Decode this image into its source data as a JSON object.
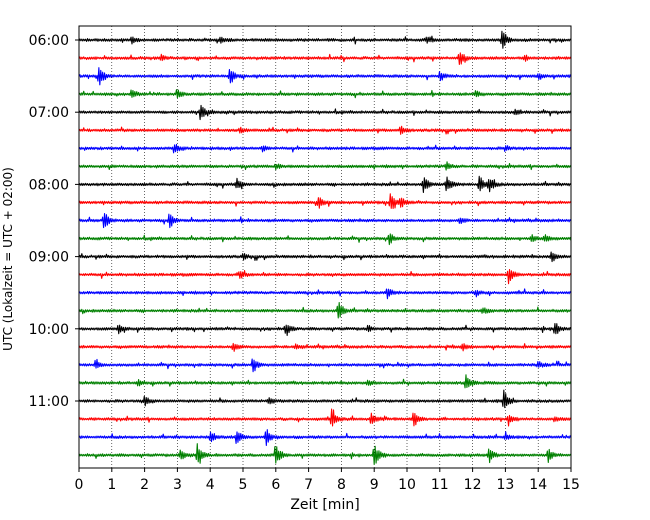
{
  "chart_data": {
    "type": "line",
    "subtype": "helicorder-seismogram",
    "title": "",
    "xlabel": "Zeit  [min]",
    "ylabel": "UTC (Lokalzeit = UTC + 02:00)",
    "xlim": [
      0,
      15
    ],
    "x_ticks": [
      "0",
      "1",
      "2",
      "3",
      "4",
      "5",
      "6",
      "7",
      "8",
      "9",
      "10",
      "11",
      "12",
      "13",
      "14",
      "15"
    ],
    "y_ticks": [
      "06:00",
      "07:00",
      "08:00",
      "09:00",
      "10:00",
      "11:00"
    ],
    "minutes_per_row": 15,
    "rows_per_tick_label": 4,
    "vertical_grid": true,
    "grid_style": "dotted",
    "color_cycle": [
      "#000000",
      "#ff0000",
      "#0000ff",
      "#008000"
    ],
    "rows": [
      {
        "start": "06:00",
        "color": "#000000",
        "events": [
          {
            "t": 12.9,
            "a": 1.0
          },
          {
            "t": 1.6,
            "a": 0.35
          },
          {
            "t": 4.3,
            "a": 0.35
          },
          {
            "t": 10.6,
            "a": 0.4
          }
        ]
      },
      {
        "start": "06:15",
        "color": "#ff0000",
        "events": [
          {
            "t": 11.6,
            "a": 0.85
          },
          {
            "t": 2.5,
            "a": 0.3
          },
          {
            "t": 13.6,
            "a": 0.3
          }
        ]
      },
      {
        "start": "06:30",
        "color": "#0000ff",
        "events": [
          {
            "t": 0.6,
            "a": 1.4
          },
          {
            "t": 4.6,
            "a": 1.0
          },
          {
            "t": 11.0,
            "a": 0.55
          },
          {
            "t": 14.0,
            "a": 0.4
          }
        ]
      },
      {
        "start": "06:45",
        "color": "#008000",
        "events": [
          {
            "t": 1.6,
            "a": 0.55
          },
          {
            "t": 3.0,
            "a": 0.4
          },
          {
            "t": 12.1,
            "a": 0.35
          }
        ]
      },
      {
        "start": "07:00",
        "color": "#000000",
        "events": [
          {
            "t": 3.7,
            "a": 0.9
          },
          {
            "t": 13.3,
            "a": 0.3
          }
        ]
      },
      {
        "start": "07:15",
        "color": "#ff0000",
        "events": [
          {
            "t": 9.8,
            "a": 0.5
          },
          {
            "t": 4.9,
            "a": 0.3
          }
        ]
      },
      {
        "start": "07:30",
        "color": "#0000ff",
        "events": [
          {
            "t": 2.9,
            "a": 0.55
          },
          {
            "t": 5.6,
            "a": 0.3
          },
          {
            "t": 13.0,
            "a": 0.3
          }
        ]
      },
      {
        "start": "07:45",
        "color": "#008000",
        "events": [
          {
            "t": 11.2,
            "a": 0.45
          },
          {
            "t": 6.0,
            "a": 0.3
          }
        ]
      },
      {
        "start": "08:00",
        "color": "#000000",
        "events": [
          {
            "t": 4.8,
            "a": 0.6
          },
          {
            "t": 10.5,
            "a": 1.1
          },
          {
            "t": 11.2,
            "a": 1.0
          },
          {
            "t": 12.2,
            "a": 1.1
          },
          {
            "t": 12.5,
            "a": 0.9
          }
        ]
      },
      {
        "start": "08:15",
        "color": "#ff0000",
        "events": [
          {
            "t": 7.3,
            "a": 0.7
          },
          {
            "t": 9.5,
            "a": 1.2
          },
          {
            "t": 9.8,
            "a": 0.6
          }
        ]
      },
      {
        "start": "08:30",
        "color": "#0000ff",
        "events": [
          {
            "t": 0.75,
            "a": 1.2
          },
          {
            "t": 2.75,
            "a": 1.0
          },
          {
            "t": 11.6,
            "a": 0.4
          }
        ]
      },
      {
        "start": "08:45",
        "color": "#008000",
        "events": [
          {
            "t": 9.45,
            "a": 0.7
          },
          {
            "t": 13.8,
            "a": 0.4
          },
          {
            "t": 14.2,
            "a": 0.4
          }
        ]
      },
      {
        "start": "09:00",
        "color": "#000000",
        "events": [
          {
            "t": 14.4,
            "a": 0.7
          },
          {
            "t": 5.0,
            "a": 0.3
          }
        ]
      },
      {
        "start": "09:15",
        "color": "#ff0000",
        "events": [
          {
            "t": 13.1,
            "a": 1.0
          },
          {
            "t": 4.9,
            "a": 0.45
          }
        ]
      },
      {
        "start": "09:30",
        "color": "#0000ff",
        "events": [
          {
            "t": 9.4,
            "a": 0.7
          },
          {
            "t": 12.1,
            "a": 0.35
          }
        ]
      },
      {
        "start": "09:45",
        "color": "#008000",
        "events": [
          {
            "t": 7.9,
            "a": 1.2
          },
          {
            "t": 12.3,
            "a": 0.35
          }
        ]
      },
      {
        "start": "10:00",
        "color": "#000000",
        "events": [
          {
            "t": 1.2,
            "a": 0.5
          },
          {
            "t": 6.3,
            "a": 0.7
          },
          {
            "t": 8.8,
            "a": 0.35
          },
          {
            "t": 14.5,
            "a": 0.9
          }
        ]
      },
      {
        "start": "10:15",
        "color": "#ff0000",
        "events": [
          {
            "t": 4.7,
            "a": 0.55
          },
          {
            "t": 6.6,
            "a": 0.35
          },
          {
            "t": 11.7,
            "a": 0.4
          }
        ]
      },
      {
        "start": "10:30",
        "color": "#0000ff",
        "events": [
          {
            "t": 0.5,
            "a": 0.5
          },
          {
            "t": 5.3,
            "a": 1.0
          },
          {
            "t": 14.0,
            "a": 0.35
          }
        ]
      },
      {
        "start": "10:45",
        "color": "#008000",
        "events": [
          {
            "t": 11.8,
            "a": 1.0
          },
          {
            "t": 1.8,
            "a": 0.35
          },
          {
            "t": 8.8,
            "a": 0.3
          }
        ]
      },
      {
        "start": "11:00",
        "color": "#000000",
        "events": [
          {
            "t": 2.0,
            "a": 0.6
          },
          {
            "t": 12.95,
            "a": 1.2
          },
          {
            "t": 5.8,
            "a": 0.35
          }
        ]
      },
      {
        "start": "11:15",
        "color": "#ff0000",
        "events": [
          {
            "t": 7.7,
            "a": 1.1
          },
          {
            "t": 8.9,
            "a": 0.8
          },
          {
            "t": 10.2,
            "a": 0.9
          },
          {
            "t": 13.1,
            "a": 0.6
          },
          {
            "t": 14.5,
            "a": 0.3
          }
        ]
      },
      {
        "start": "11:30",
        "color": "#0000ff",
        "events": [
          {
            "t": 4.0,
            "a": 0.6
          },
          {
            "t": 4.8,
            "a": 0.8
          },
          {
            "t": 5.7,
            "a": 1.0
          },
          {
            "t": 13.0,
            "a": 0.35
          }
        ]
      },
      {
        "start": "11:45",
        "color": "#008000",
        "events": [
          {
            "t": 3.1,
            "a": 0.7
          },
          {
            "t": 3.6,
            "a": 1.3
          },
          {
            "t": 6.0,
            "a": 1.4
          },
          {
            "t": 9.0,
            "a": 1.4
          },
          {
            "t": 12.5,
            "a": 0.9
          },
          {
            "t": 14.3,
            "a": 0.8
          }
        ]
      }
    ]
  }
}
